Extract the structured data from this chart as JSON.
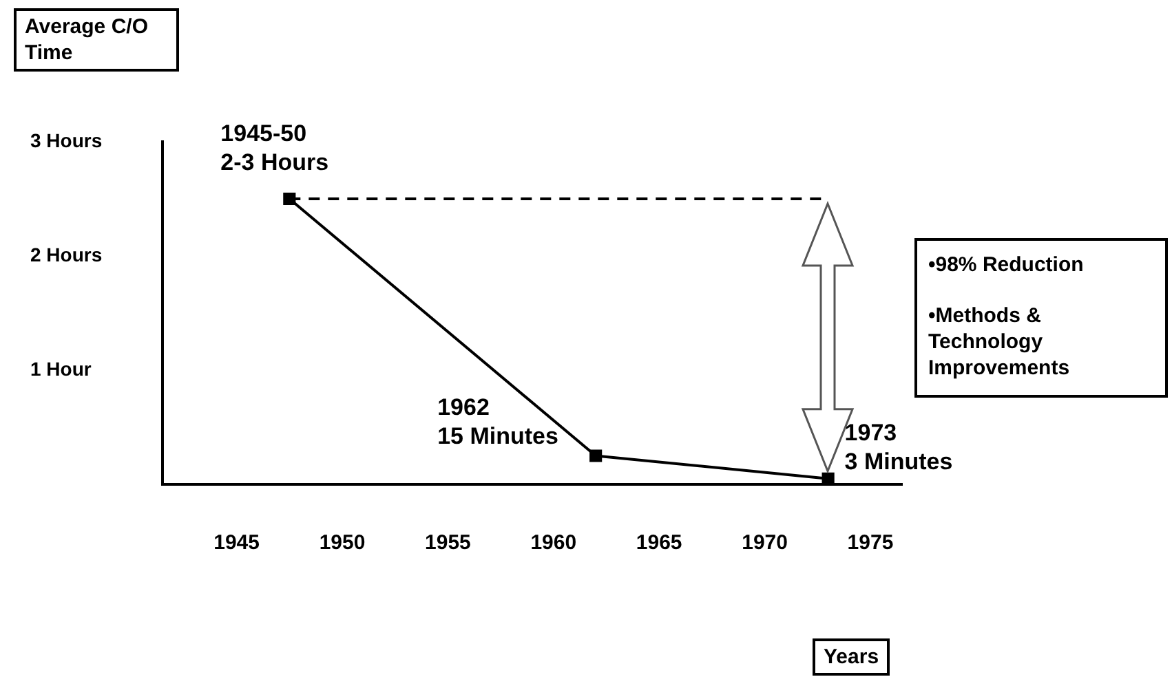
{
  "chart_data": {
    "type": "line",
    "ylabel": "Average C/O Time",
    "xlabel": "Years",
    "x": [
      1947.5,
      1962,
      1973
    ],
    "series": [
      {
        "color": "#000000",
        "values": [
          2.5,
          0.25,
          0.05
        ]
      }
    ],
    "xlim": [
      1941.5,
      1976.5
    ],
    "xticks": [
      1945,
      1950,
      1955,
      1960,
      1965,
      1970,
      1975
    ],
    "ylim": [
      0,
      3
    ],
    "yticks": [
      {
        "value": 1,
        "label": "1 Hour"
      },
      {
        "value": 2,
        "label": "2 Hours"
      },
      {
        "value": 3,
        "label": "3 Hours"
      }
    ],
    "ref_lines": [
      {
        "axis": "y",
        "value": 2.5,
        "color": "#000000",
        "line_style": "dashed"
      }
    ],
    "annotations": [
      {
        "text": "1945-50\n2-3 Hours",
        "x": 1947.5,
        "y": 2.5
      },
      {
        "text": "1962\n15 Minutes",
        "x": 1962,
        "y": 0.25
      },
      {
        "text": "1973\n3 Minutes",
        "x": 1973,
        "y": 0.05
      },
      "•98% Reduction",
      "•Methods & Technology Improvements"
    ],
    "grid": false,
    "legend": false,
    "marker": "square",
    "line_style": "solid"
  }
}
